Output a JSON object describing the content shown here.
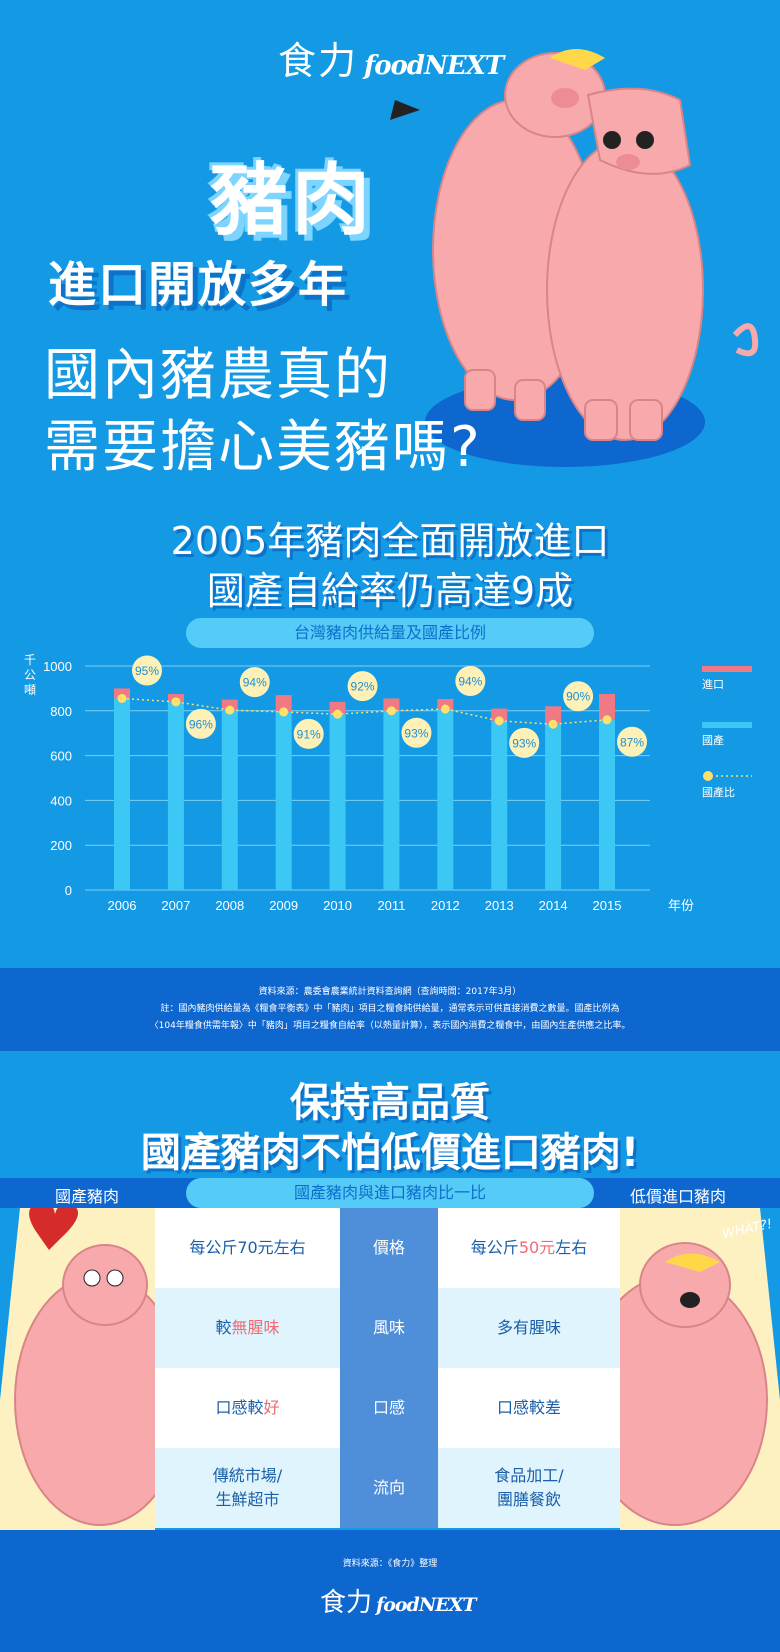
{
  "logo": {
    "cn": "食力",
    "en": "foodNEXT"
  },
  "hero": {
    "title_big": "豬肉",
    "title_sub": "進口開放多年",
    "question_line1": "國內豬農真的",
    "question_line2": "需要擔心美豬嗎?"
  },
  "section1": {
    "heading_line1": "2005年豬肉全面開放進口",
    "heading_line2": "國產自給率仍高達9成",
    "pill": "台灣豬肉供給量及國產比例"
  },
  "chart_data": {
    "type": "bar",
    "categories": [
      "2006",
      "2007",
      "2008",
      "2009",
      "2010",
      "2011",
      "2012",
      "2013",
      "2014",
      "2015"
    ],
    "series": [
      {
        "name": "國產",
        "values": [
          855,
          840,
          803,
          795,
          785,
          800,
          808,
          755,
          740,
          760
        ],
        "color": "#3cc8f5"
      },
      {
        "name": "進口",
        "values": [
          45,
          35,
          47,
          75,
          55,
          55,
          45,
          55,
          80,
          115
        ],
        "color": "#f07a84"
      }
    ],
    "ratio_series": {
      "name": "國產比",
      "values": [
        95,
        96,
        94,
        91,
        92,
        93,
        94,
        93,
        90,
        87
      ],
      "labels": [
        "95%",
        "96%",
        "94%",
        "91%",
        "92%",
        "93%",
        "94%",
        "93%",
        "90%",
        "87%"
      ],
      "color": "#ffe06a"
    },
    "ylim": [
      0,
      1000
    ],
    "yticks": [
      "0",
      "200",
      "400",
      "600",
      "800",
      "1000"
    ],
    "ylabel": "千公噸",
    "xlabel": "年份",
    "legend_position": "right",
    "grid": true
  },
  "source1": {
    "line1": "資料來源：農委會農業統計資料查詢網（查詢時間：2017年3月）",
    "line2": "註：國內豬肉供給量為《糧食平衡表》中「豬肉」項目之糧食純供給量，通常表示可供直接消費之數量。國產比例為",
    "line3": "〈104年糧食供需年報〉中「豬肉」項目之糧食自給率（以熱量計算），表示國內消費之糧食中，由國內生產供應之比率。"
  },
  "section2": {
    "heading_line1": "保持高品質",
    "heading_line2": "國產豬肉不怕低價進口豬肉!",
    "pill": "國產豬肉與進口豬肉比一比",
    "label_local": "國產豬肉",
    "label_import": "低價進口豬肉",
    "whatsign": "WHAT?!"
  },
  "comparison": [
    {
      "category": "價格",
      "local": {
        "pre": "每公斤70元左右",
        "hl": "",
        "post": ""
      },
      "import": {
        "pre": "每公斤",
        "hl": "50元",
        "post": "左右"
      }
    },
    {
      "category": "風味",
      "local": {
        "pre": "較",
        "hl": "無腥味",
        "post": ""
      },
      "import": {
        "pre": "多有腥味",
        "hl": "",
        "post": ""
      }
    },
    {
      "category": "口感",
      "local": {
        "pre": "口感較",
        "hl": "好",
        "post": ""
      },
      "import": {
        "pre": "口感較差",
        "hl": "",
        "post": ""
      }
    },
    {
      "category": "流向",
      "local": {
        "pre": "傳統市場/",
        "hl": "",
        "post": "生鮮超市"
      },
      "import": {
        "pre": "食品加工/",
        "hl": "",
        "post": "團膳餐飲"
      }
    }
  ],
  "source2": "資料來源：《食力》整理",
  "colors": {
    "bg": "#1499e4",
    "dark": "#0e66cf",
    "pink": "#f7a9ac",
    "yellow": "#ffe06a"
  }
}
